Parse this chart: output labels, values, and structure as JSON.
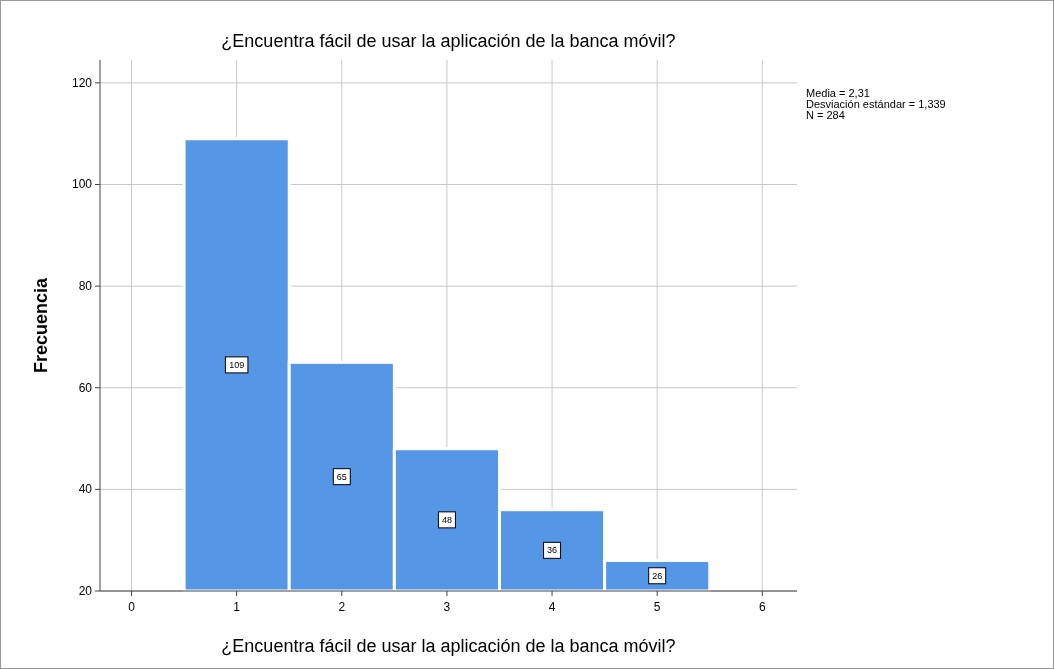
{
  "chart_data": {
    "type": "histogram",
    "title": "¿Encuentra fácil de usar la aplicación de la banca móvil?",
    "xlabel": "¿Encuentra fácil de usar la aplicación de la banca móvil?",
    "ylabel": "Frecuencia",
    "bins": [
      0.5,
      1.5,
      2.5,
      3.5,
      4.5,
      5.5
    ],
    "values": [
      109,
      65,
      48,
      36,
      26
    ],
    "color": "#5596e6",
    "data_labels": true,
    "xlim": [
      -0.3,
      6.33
    ],
    "xticks": [
      0,
      1,
      2,
      3,
      4,
      5,
      6
    ],
    "ylim": [
      20,
      124.5
    ],
    "yticks": [
      20,
      40,
      60,
      80,
      100,
      120
    ],
    "grid": true,
    "annotations": [
      "Media = 2,31",
      "Desviación estándar = 1,339",
      "N = 284"
    ]
  }
}
